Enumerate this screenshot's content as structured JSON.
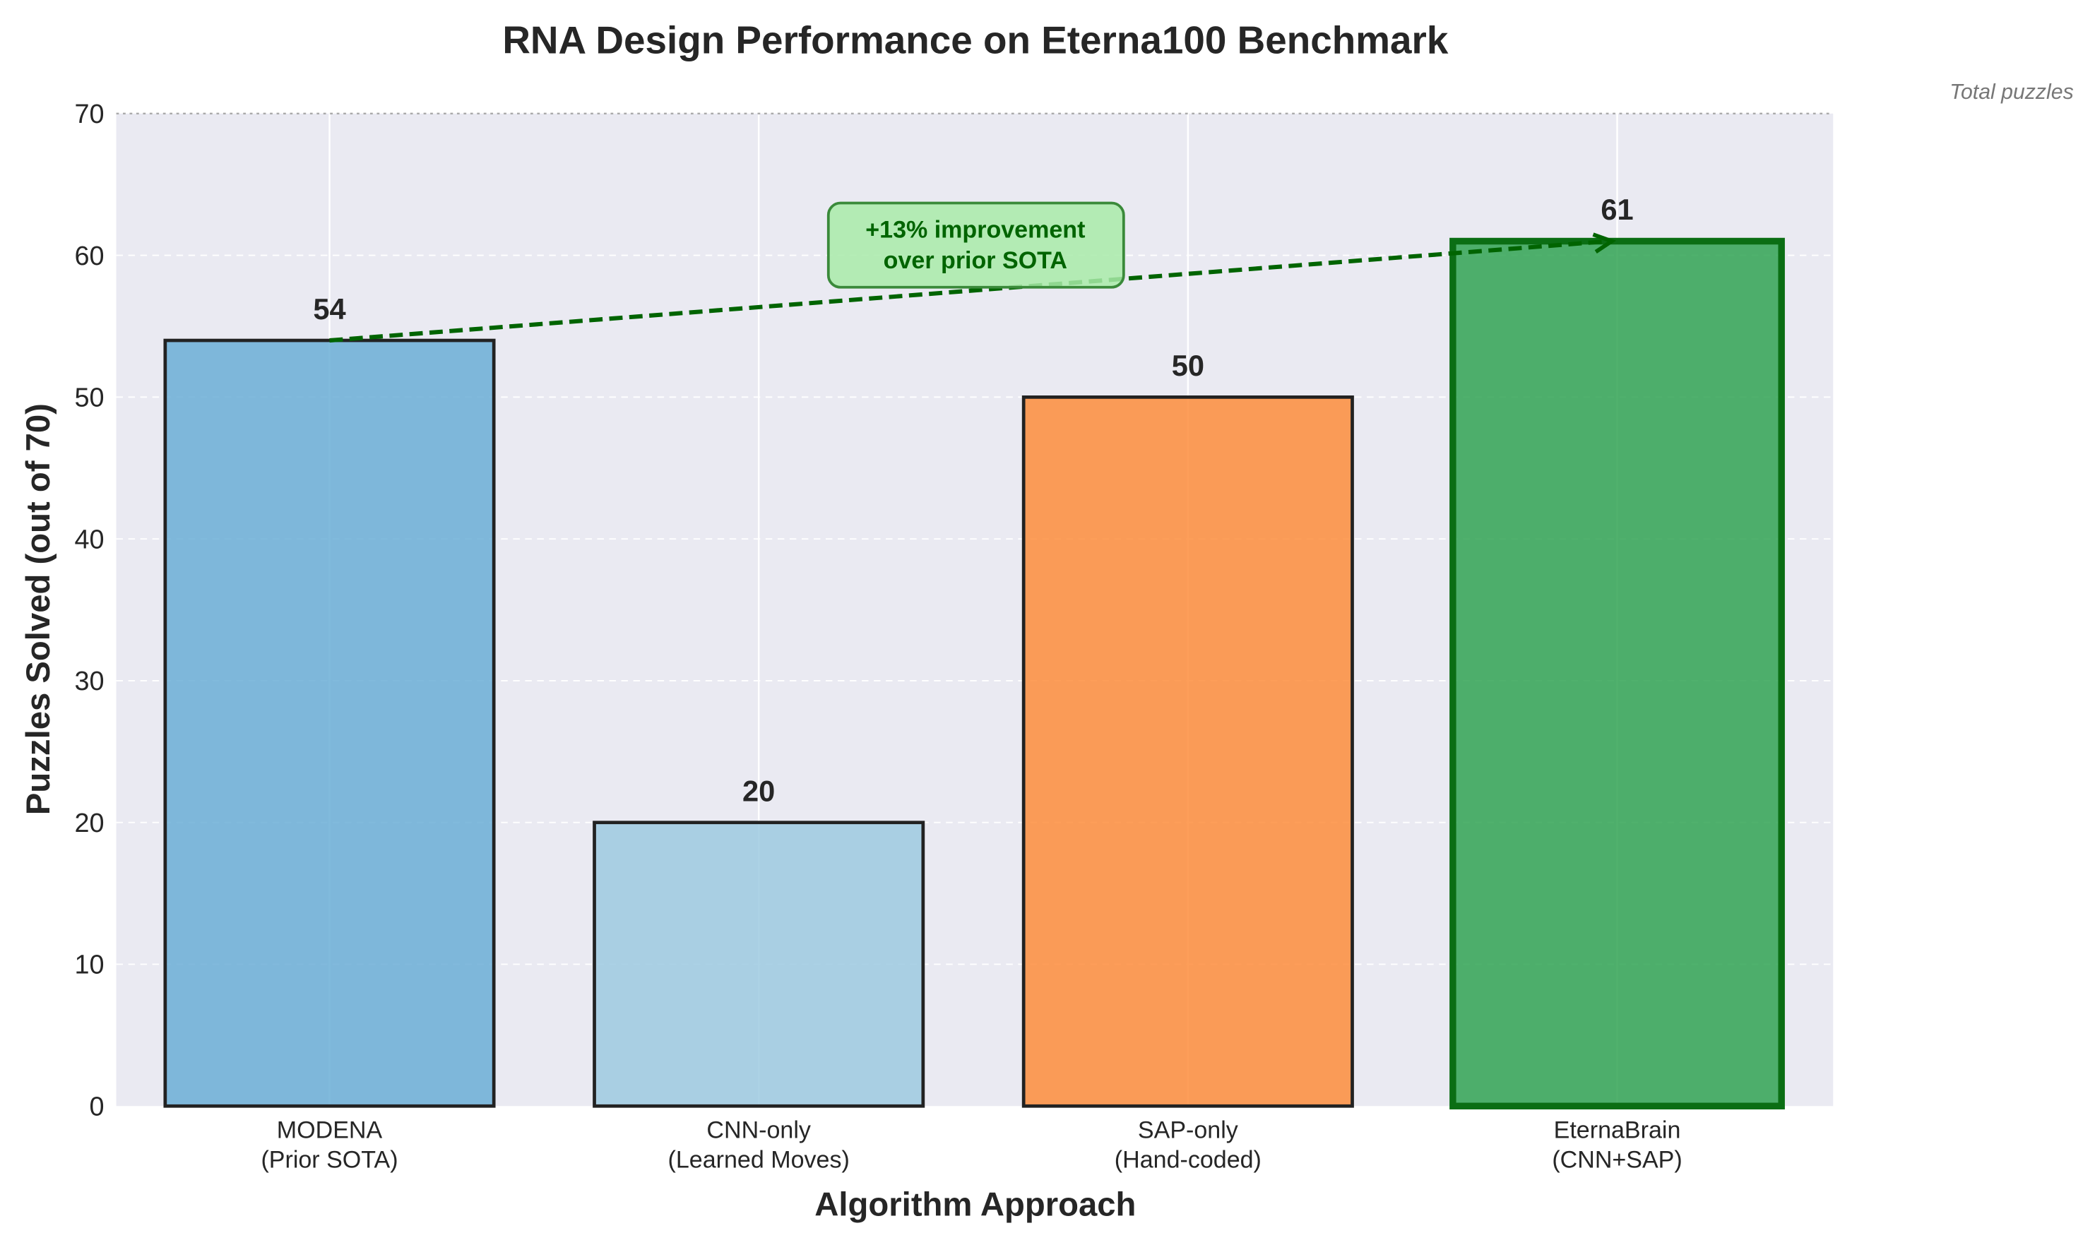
{
  "chart_data": {
    "type": "bar",
    "title": "RNA Design Performance on Eterna100 Benchmark",
    "xlabel": "Algorithm Approach",
    "ylabel": "Puzzles Solved (out of 70)",
    "ylim": [
      0,
      70
    ],
    "yticks": [
      0,
      10,
      20,
      30,
      40,
      50,
      60,
      70
    ],
    "grid": true,
    "categories": [
      [
        "MODENA",
        "(Prior SOTA)"
      ],
      [
        "CNN-only",
        "(Learned Moves)"
      ],
      [
        "SAP-only",
        "(Hand-coded)"
      ],
      [
        "EternaBrain",
        "(CNN+SAP)"
      ]
    ],
    "values": [
      54,
      20,
      50,
      61
    ],
    "bar_colors": [
      "#6baed6",
      "#9ecae1",
      "#fd8d3c",
      "#31a354"
    ],
    "edge_colors": [
      "#222222",
      "#222222",
      "#222222",
      "#0b6e14"
    ],
    "reference_line": {
      "value": 70,
      "label": "Total puzzles"
    },
    "annotation": {
      "lines": [
        "+13% improvement",
        "over prior SOTA"
      ],
      "from_category": 0,
      "to_category": 3,
      "color": "#006400",
      "box_color": "#a9eba9"
    },
    "background": "#eaeaf2"
  }
}
